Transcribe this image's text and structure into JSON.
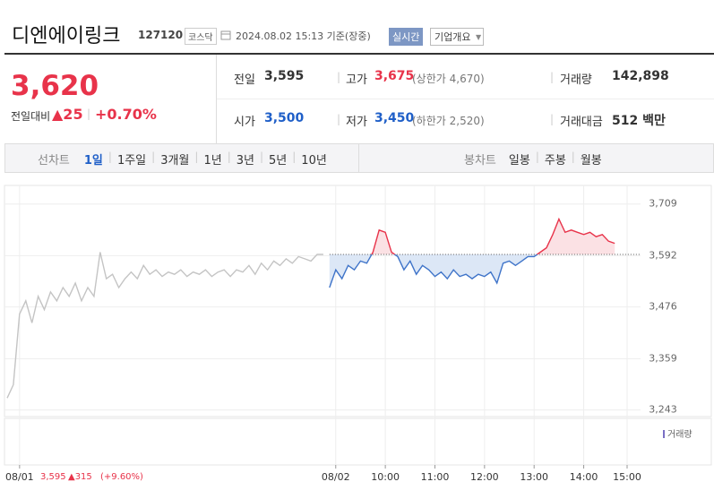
{
  "header": {
    "name": "디엔에이링크",
    "code": "127120",
    "market": "코스닥",
    "timestamp": "2024.08.02 15:13 기준(장중)",
    "realtime_button": "실시간",
    "company_button": "기업개요"
  },
  "quote": {
    "price": "3,620",
    "change_label": "전일대비",
    "change": "▲25",
    "change_pct": "+0.70%",
    "fields": [
      {
        "label": "전일",
        "value": "3,595"
      },
      {
        "label": "고가",
        "value": "3,675",
        "note": "(상한가 4,670)"
      },
      {
        "label": "거래량",
        "value": "142,898"
      },
      {
        "label": "시가",
        "value": "3,500"
      },
      {
        "label": "저가",
        "value": "3,450",
        "note": "(하한가 2,520)"
      },
      {
        "label": "거래대금",
        "value": "512 백만"
      }
    ]
  },
  "tabs": {
    "line_label": "선차트",
    "line_periods": [
      "1일",
      "1주일",
      "3개월",
      "1년",
      "3년",
      "5년",
      "10년"
    ],
    "candle_label": "봉차트",
    "candle_periods": [
      "일봉",
      "주봉",
      "월봉"
    ]
  },
  "chart_data": {
    "type": "line",
    "categories": [
      null,
      null,
      "08/01",
      null,
      null,
      null,
      null,
      null,
      null,
      null,
      null,
      null,
      null,
      null,
      null,
      null,
      null,
      null,
      null,
      null,
      null,
      null,
      null,
      null,
      null,
      null,
      null,
      null,
      null,
      null,
      null,
      null,
      null,
      null,
      null,
      null,
      null,
      null,
      null,
      null,
      null,
      null,
      null,
      null,
      null,
      null,
      null,
      null,
      null,
      null,
      null,
      null,
      null,
      "08/02",
      null,
      null,
      null,
      null,
      null,
      null,
      null,
      "10:00",
      null,
      null,
      null,
      null,
      null,
      null,
      null,
      "11:00",
      null,
      null,
      null,
      null,
      null,
      null,
      null,
      "12:00",
      null,
      null,
      null,
      null,
      null,
      null,
      null,
      "13:00",
      null,
      null,
      null,
      null,
      null,
      null,
      null,
      "14:00",
      null,
      null,
      null,
      null,
      null,
      null,
      "15:00"
    ],
    "series": [
      {
        "color": "#c4c4c4",
        "values": [
          3270,
          3300,
          3460,
          3490,
          3440,
          3500,
          3470,
          3510,
          3490,
          3520,
          3500,
          3530,
          3490,
          3520,
          3500,
          3600,
          3540,
          3550,
          3520,
          3540,
          3555,
          3540,
          3570,
          3550,
          3560,
          3545,
          3555,
          3550,
          3560,
          3545,
          3555,
          3550,
          3560,
          3545,
          3555,
          3560,
          3545,
          3560,
          3555,
          3570,
          3550,
          3575,
          3560,
          3580,
          3570,
          3585,
          3575,
          3590,
          3585,
          3580,
          3595,
          3595,
          null,
          null,
          null,
          null,
          null,
          null,
          null,
          null,
          null,
          null,
          null,
          null,
          null,
          null,
          null,
          null,
          null,
          null,
          null,
          null,
          null,
          null,
          null,
          null,
          null,
          null,
          null,
          null,
          null,
          null,
          null,
          null,
          null,
          null,
          null,
          null,
          null,
          null,
          null,
          null,
          null,
          null,
          null,
          null,
          null,
          null,
          null,
          null,
          null
        ]
      },
      {
        "color": "#3f74c9",
        "above_color": "#e8334a",
        "fill": "#dce7f6",
        "above_fill": "#fbe1e4",
        "values": [
          null,
          null,
          null,
          null,
          null,
          null,
          null,
          null,
          null,
          null,
          null,
          null,
          null,
          null,
          null,
          null,
          null,
          null,
          null,
          null,
          null,
          null,
          null,
          null,
          null,
          null,
          null,
          null,
          null,
          null,
          null,
          null,
          null,
          null,
          null,
          null,
          null,
          null,
          null,
          null,
          null,
          null,
          null,
          null,
          null,
          null,
          null,
          null,
          null,
          null,
          null,
          null,
          3520,
          3560,
          3540,
          3570,
          3560,
          3580,
          3575,
          3600,
          3650,
          3645,
          3600,
          3590,
          3560,
          3580,
          3550,
          3570,
          3560,
          3545,
          3555,
          3540,
          3560,
          3545,
          3550,
          3540,
          3550,
          3545,
          3555,
          3530,
          3575,
          3580,
          3570,
          3580,
          3590,
          3590,
          3600,
          3610,
          3640,
          3675,
          3645,
          3650,
          3645,
          3640,
          3645,
          3635,
          3640,
          3625,
          3620,
          null,
          null
        ]
      }
    ],
    "baseline": 3595,
    "ylim": [
      3228,
      3751
    ],
    "yticks": [
      {
        "value": 3243,
        "label": "3,243"
      },
      {
        "value": 3359,
        "label": "3,359"
      },
      {
        "value": 3476,
        "label": "3,476"
      },
      {
        "value": 3592,
        "label": "3,592"
      },
      {
        "value": 3709,
        "label": "3,709"
      }
    ],
    "grid": true,
    "volume_label": "거래량"
  },
  "footer": {
    "close": "3,595",
    "change": "▲315",
    "change_pct": "(+9.60%)"
  }
}
